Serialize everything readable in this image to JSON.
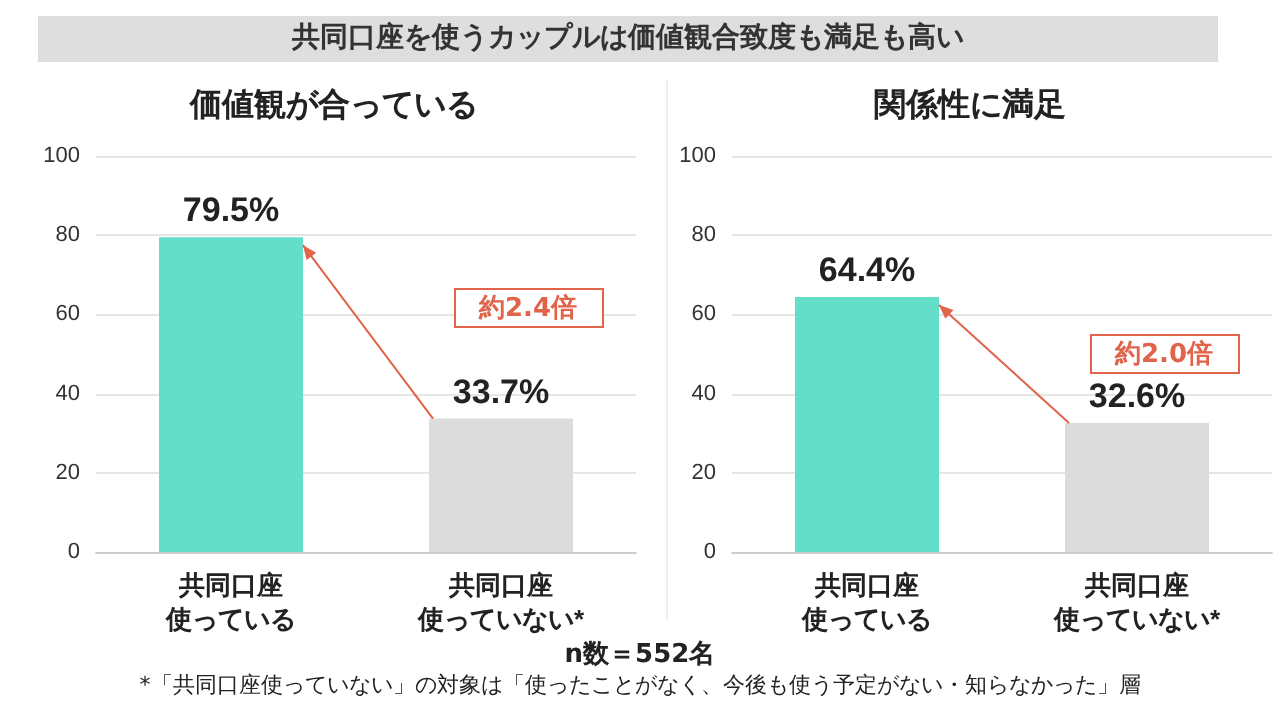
{
  "chart_data": [
    {
      "type": "bar",
      "title": "価値観が合っている",
      "categories": [
        "共同口座使っている",
        "共同口座使っていない*"
      ],
      "values": [
        79.5,
        33.7
      ],
      "colors": [
        "#63dfc9",
        "#dcdcdc"
      ],
      "value_labels": [
        "79.5%",
        "33.7%"
      ],
      "ylim": [
        0,
        100
      ],
      "yticks": [
        0,
        20,
        40,
        60,
        80,
        100
      ],
      "grid": "y",
      "annotations": [
        "共同口座を使うカップルは価値観合致度も満足も高い",
        "約2.4倍",
        "n数＝552名",
        "*「共同口座使っていない」の対象は「使ったことがなく、今後も使う予定がない・知らなかった」層"
      ]
    },
    {
      "type": "bar",
      "title": "関係性に満足",
      "categories": [
        "共同口座使っている",
        "共同口座使っていない*"
      ],
      "values": [
        64.4,
        32.6
      ],
      "colors": [
        "#63dfc9",
        "#dcdcdc"
      ],
      "value_labels": [
        "64.4%",
        "32.6%"
      ],
      "ylim": [
        0,
        100
      ],
      "yticks": [
        0,
        20,
        40,
        60,
        80,
        100
      ],
      "grid": "y",
      "annotations": [
        "約2.0倍"
      ]
    }
  ]
}
